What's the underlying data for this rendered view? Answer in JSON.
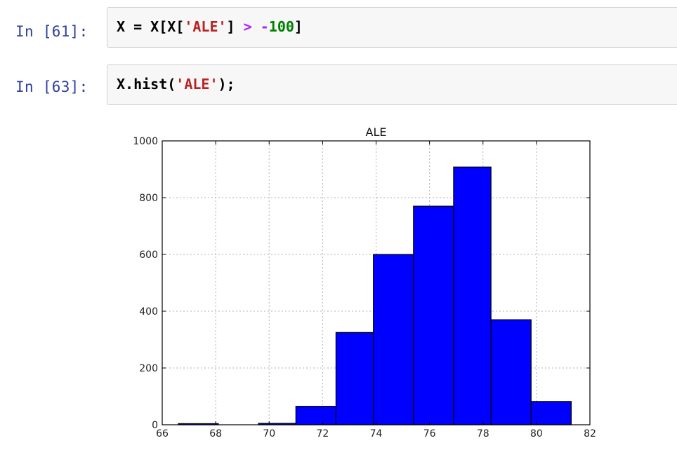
{
  "cells": [
    {
      "prompt": "In [61]:",
      "code_tokens": [
        {
          "text": "X = X[X[",
          "kind": "plain"
        },
        {
          "text": "'ALE'",
          "kind": "str"
        },
        {
          "text": "] ",
          "kind": "plain"
        },
        {
          "text": ">",
          "kind": "op"
        },
        {
          "text": " ",
          "kind": "plain"
        },
        {
          "text": "-",
          "kind": "op"
        },
        {
          "text": "100",
          "kind": "num"
        },
        {
          "text": "]",
          "kind": "plain"
        }
      ]
    },
    {
      "prompt": "In [63]:",
      "code_tokens": [
        {
          "text": "X.hist(",
          "kind": "plain"
        },
        {
          "text": "'ALE'",
          "kind": "str"
        },
        {
          "text": ");",
          "kind": "plain"
        }
      ]
    }
  ],
  "colors": {
    "bar_fill": "#0000ff",
    "bar_edge": "#000000",
    "grid": "#b0b0b0",
    "prompt": "#303f9f",
    "string": "#ba2121",
    "operator": "#aa22ff",
    "number": "#008000"
  },
  "chart_data": {
    "type": "bar",
    "title": "ALE",
    "xlabel": "",
    "ylabel": "",
    "xlim": [
      66,
      82
    ],
    "ylim": [
      0,
      1000
    ],
    "xticks": [
      66,
      68,
      70,
      72,
      74,
      76,
      78,
      80,
      82
    ],
    "yticks": [
      0,
      200,
      400,
      600,
      800,
      1000
    ],
    "grid": true,
    "legend": "none",
    "bins": [
      {
        "x0": 66.6,
        "x1": 68.1,
        "value": 4
      },
      {
        "x0": 68.1,
        "x1": 69.6,
        "value": 0
      },
      {
        "x0": 69.6,
        "x1": 71.0,
        "value": 5
      },
      {
        "x0": 71.0,
        "x1": 72.5,
        "value": 65
      },
      {
        "x0": 72.5,
        "x1": 73.9,
        "value": 325
      },
      {
        "x0": 73.9,
        "x1": 75.4,
        "value": 600
      },
      {
        "x0": 75.4,
        "x1": 76.9,
        "value": 770
      },
      {
        "x0": 76.9,
        "x1": 78.3,
        "value": 908
      },
      {
        "x0": 78.3,
        "x1": 79.8,
        "value": 370
      },
      {
        "x0": 79.8,
        "x1": 81.3,
        "value": 82
      }
    ]
  }
}
